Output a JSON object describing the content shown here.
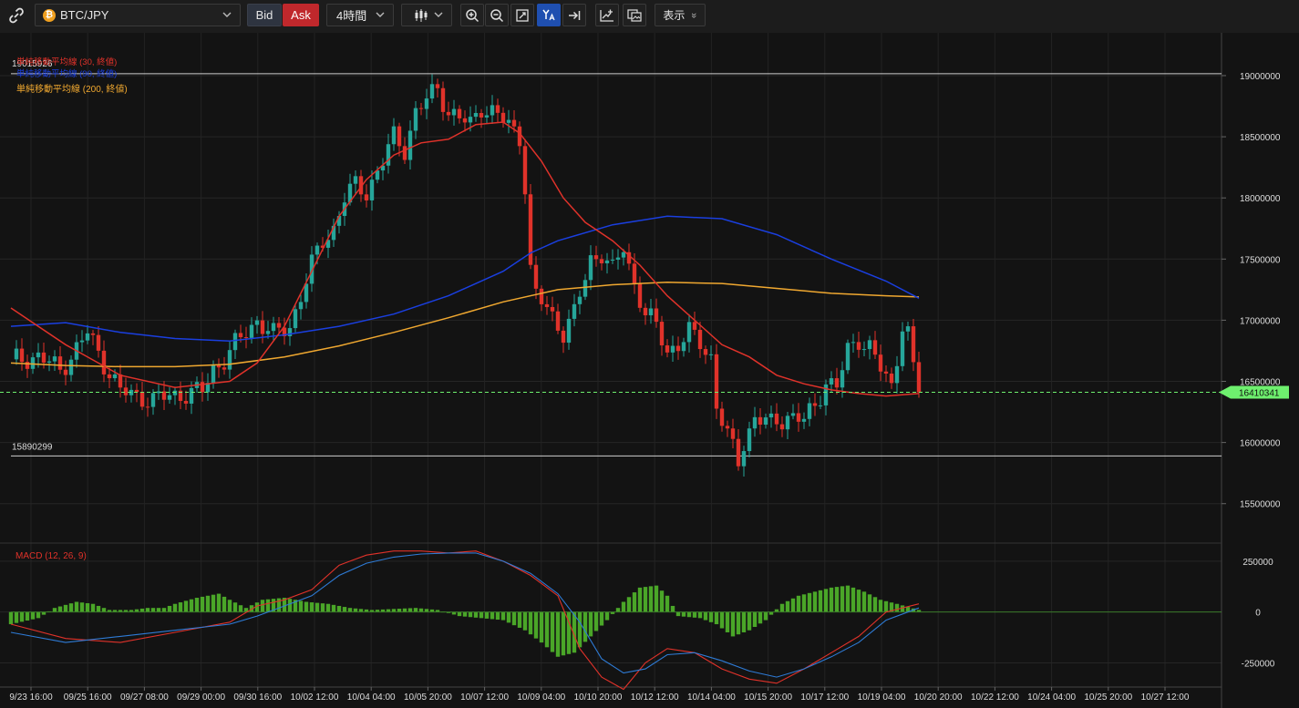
{
  "toolbar": {
    "symbol": "BTC/JPY",
    "coin_glyph": "₿",
    "bid_label": "Bid",
    "ask_label": "Ask",
    "timeframe": "4時間",
    "display_label": "表示",
    "display_chevron": "»"
  },
  "side_arrows": {
    "left": "»",
    "right": "«"
  },
  "indicators": {
    "sma30_label": "単純移動平均線 (30, 終値)",
    "sma90_label": "単純移動平均線 (90, 終値)",
    "sma200_label": "単純移動平均線 (200, 終値)",
    "macd_label": "MACD (12, 26, 9)"
  },
  "levels": {
    "upper_line": 19015926,
    "upper_label": "19015926",
    "lower_line": 15890299,
    "lower_label": "15890299",
    "current_price": 16410341,
    "current_label": "16410341"
  },
  "colors": {
    "up": "#26a69a",
    "down": "#e0322a",
    "sma30": "#e0322a",
    "sma90": "#1a3fe0",
    "sma200": "#f0a830",
    "macd_line": "#e0322a",
    "signal_line": "#2e7bd6",
    "histogram": "#4aa628",
    "current_price": "#6ef06e"
  },
  "chart_data": {
    "type": "candlestick",
    "ylim": [
      15200000,
      19350000
    ],
    "yticks": [
      19000000,
      18500000,
      18000000,
      17500000,
      17000000,
      16500000,
      16000000,
      15500000
    ],
    "ytick_labels": [
      "19000000",
      "18500000",
      "18000000",
      "17500000",
      "17000000",
      "16500000",
      "16000000",
      "15500000"
    ],
    "xticks": [
      "9/23 16:00",
      "09/25 16:00",
      "09/27 08:00",
      "09/29 00:00",
      "09/30 16:00",
      "10/02 12:00",
      "10/04 04:00",
      "10/05 20:00",
      "10/07 12:00",
      "10/09 04:00",
      "10/10 20:00",
      "10/12 12:00",
      "10/14 04:00",
      "10/15 20:00",
      "10/17 12:00",
      "10/19 04:00",
      "10/20 20:00",
      "10/22 12:00",
      "10/24 04:00",
      "10/25 20:00",
      "10/27 12:00"
    ],
    "close_path": [
      [
        0,
        16680000
      ],
      [
        5,
        16700000
      ],
      [
        9,
        16600000
      ],
      [
        11,
        16700000
      ],
      [
        14,
        16900000
      ],
      [
        17,
        16650000
      ],
      [
        20,
        16420000
      ],
      [
        23,
        16380000
      ],
      [
        26,
        16350000
      ],
      [
        29,
        16380000
      ],
      [
        32,
        16400000
      ],
      [
        35,
        16420000
      ],
      [
        37,
        16600000
      ],
      [
        39,
        16680000
      ],
      [
        41,
        16800000
      ],
      [
        43,
        16900000
      ],
      [
        45,
        17000000
      ],
      [
        48,
        16880000
      ],
      [
        51,
        16950000
      ],
      [
        53,
        17200000
      ],
      [
        55,
        17450000
      ],
      [
        57,
        17650000
      ],
      [
        59,
        17750000
      ],
      [
        61,
        18000000
      ],
      [
        63,
        18100000
      ],
      [
        65,
        18050000
      ],
      [
        68,
        18300000
      ],
      [
        70,
        18500000
      ],
      [
        72,
        18400000
      ],
      [
        74,
        18700000
      ],
      [
        76,
        18800000
      ],
      [
        78,
        18900000
      ],
      [
        80,
        18700000
      ],
      [
        82,
        18650000
      ],
      [
        84,
        18600000
      ],
      [
        86,
        18750000
      ],
      [
        88,
        18700000
      ],
      [
        91,
        18600000
      ],
      [
        93,
        18500000
      ],
      [
        94,
        18100000
      ],
      [
        95,
        17400000
      ],
      [
        96,
        17200000
      ],
      [
        98,
        17100000
      ],
      [
        101,
        16900000
      ],
      [
        103,
        17050000
      ],
      [
        106,
        17500000
      ],
      [
        108,
        17550000
      ],
      [
        110,
        17400000
      ],
      [
        112,
        17600000
      ],
      [
        114,
        17300000
      ],
      [
        116,
        17050000
      ],
      [
        118,
        16950000
      ],
      [
        120,
        16750000
      ],
      [
        122,
        16800000
      ],
      [
        124,
        16900000
      ],
      [
        126,
        16820000
      ],
      [
        128,
        16700000
      ],
      [
        129,
        16300000
      ],
      [
        131,
        16050000
      ],
      [
        133,
        15850000
      ],
      [
        134,
        16000000
      ],
      [
        136,
        16200000
      ],
      [
        139,
        16150000
      ],
      [
        142,
        16220000
      ],
      [
        145,
        16180000
      ],
      [
        147,
        16300000
      ],
      [
        149,
        16500000
      ],
      [
        151,
        16450000
      ],
      [
        153,
        16750000
      ],
      [
        155,
        16850000
      ],
      [
        157,
        16780000
      ],
      [
        159,
        16600000
      ],
      [
        161,
        16450000
      ],
      [
        162,
        16700000
      ],
      [
        163,
        16980000
      ],
      [
        164,
        16900000
      ],
      [
        165,
        16600000
      ],
      [
        166,
        16410341
      ]
    ],
    "sma30": [
      [
        0,
        17100000
      ],
      [
        10,
        16800000
      ],
      [
        20,
        16550000
      ],
      [
        30,
        16450000
      ],
      [
        40,
        16500000
      ],
      [
        45,
        16650000
      ],
      [
        50,
        16950000
      ],
      [
        55,
        17400000
      ],
      [
        60,
        17850000
      ],
      [
        65,
        18150000
      ],
      [
        70,
        18350000
      ],
      [
        75,
        18450000
      ],
      [
        80,
        18480000
      ],
      [
        85,
        18600000
      ],
      [
        90,
        18620000
      ],
      [
        93,
        18530000
      ],
      [
        97,
        18300000
      ],
      [
        101,
        18000000
      ],
      [
        105,
        17800000
      ],
      [
        110,
        17650000
      ],
      [
        115,
        17450000
      ],
      [
        120,
        17200000
      ],
      [
        125,
        17000000
      ],
      [
        130,
        16800000
      ],
      [
        135,
        16700000
      ],
      [
        140,
        16550000
      ],
      [
        145,
        16480000
      ],
      [
        150,
        16430000
      ],
      [
        155,
        16400000
      ],
      [
        160,
        16380000
      ],
      [
        166,
        16400000
      ]
    ],
    "sma90": [
      [
        0,
        16950000
      ],
      [
        10,
        16980000
      ],
      [
        20,
        16900000
      ],
      [
        30,
        16850000
      ],
      [
        40,
        16830000
      ],
      [
        50,
        16880000
      ],
      [
        60,
        16950000
      ],
      [
        70,
        17050000
      ],
      [
        80,
        17200000
      ],
      [
        90,
        17400000
      ],
      [
        95,
        17550000
      ],
      [
        100,
        17650000
      ],
      [
        110,
        17780000
      ],
      [
        120,
        17850000
      ],
      [
        130,
        17830000
      ],
      [
        140,
        17700000
      ],
      [
        150,
        17500000
      ],
      [
        160,
        17320000
      ],
      [
        166,
        17180000
      ]
    ],
    "sma200": [
      [
        0,
        16650000
      ],
      [
        10,
        16630000
      ],
      [
        20,
        16620000
      ],
      [
        30,
        16620000
      ],
      [
        40,
        16640000
      ],
      [
        50,
        16700000
      ],
      [
        60,
        16790000
      ],
      [
        70,
        16900000
      ],
      [
        80,
        17020000
      ],
      [
        90,
        17150000
      ],
      [
        100,
        17250000
      ],
      [
        110,
        17290000
      ],
      [
        120,
        17310000
      ],
      [
        130,
        17300000
      ],
      [
        140,
        17260000
      ],
      [
        150,
        17220000
      ],
      [
        160,
        17200000
      ],
      [
        166,
        17190000
      ]
    ],
    "macd": {
      "ylim": [
        -360000,
        330000
      ],
      "yticks": [
        250000,
        0,
        -250000
      ],
      "ytick_labels": [
        "250000",
        "0",
        "-250000"
      ],
      "macd": [
        [
          0,
          -60000
        ],
        [
          10,
          -130000
        ],
        [
          20,
          -150000
        ],
        [
          30,
          -100000
        ],
        [
          40,
          -50000
        ],
        [
          45,
          30000
        ],
        [
          50,
          60000
        ],
        [
          55,
          110000
        ],
        [
          60,
          230000
        ],
        [
          65,
          280000
        ],
        [
          70,
          300000
        ],
        [
          75,
          300000
        ],
        [
          80,
          290000
        ],
        [
          85,
          300000
        ],
        [
          90,
          250000
        ],
        [
          95,
          180000
        ],
        [
          100,
          80000
        ],
        [
          104,
          -180000
        ],
        [
          108,
          -320000
        ],
        [
          112,
          -380000
        ],
        [
          116,
          -250000
        ],
        [
          120,
          -180000
        ],
        [
          125,
          -200000
        ],
        [
          130,
          -280000
        ],
        [
          135,
          -330000
        ],
        [
          140,
          -350000
        ],
        [
          145,
          -280000
        ],
        [
          150,
          -200000
        ],
        [
          155,
          -120000
        ],
        [
          160,
          0
        ],
        [
          166,
          40000
        ]
      ],
      "signal": [
        [
          0,
          -100000
        ],
        [
          10,
          -150000
        ],
        [
          20,
          -120000
        ],
        [
          30,
          -90000
        ],
        [
          40,
          -60000
        ],
        [
          45,
          -20000
        ],
        [
          50,
          30000
        ],
        [
          55,
          80000
        ],
        [
          60,
          180000
        ],
        [
          65,
          240000
        ],
        [
          70,
          270000
        ],
        [
          75,
          285000
        ],
        [
          80,
          290000
        ],
        [
          85,
          290000
        ],
        [
          90,
          250000
        ],
        [
          95,
          190000
        ],
        [
          100,
          90000
        ],
        [
          104,
          -50000
        ],
        [
          108,
          -230000
        ],
        [
          112,
          -300000
        ],
        [
          116,
          -280000
        ],
        [
          120,
          -210000
        ],
        [
          125,
          -200000
        ],
        [
          130,
          -240000
        ],
        [
          135,
          -290000
        ],
        [
          140,
          -320000
        ],
        [
          145,
          -280000
        ],
        [
          150,
          -220000
        ],
        [
          155,
          -150000
        ],
        [
          160,
          -40000
        ],
        [
          166,
          20000
        ]
      ],
      "hist": [
        [
          0,
          -60000
        ],
        [
          5,
          -30000
        ],
        [
          8,
          20000
        ],
        [
          12,
          50000
        ],
        [
          15,
          40000
        ],
        [
          18,
          10000
        ],
        [
          22,
          10000
        ],
        [
          25,
          20000
        ],
        [
          28,
          20000
        ],
        [
          30,
          40000
        ],
        [
          34,
          70000
        ],
        [
          38,
          90000
        ],
        [
          40,
          60000
        ],
        [
          43,
          20000
        ],
        [
          46,
          60000
        ],
        [
          50,
          70000
        ],
        [
          54,
          50000
        ],
        [
          58,
          40000
        ],
        [
          62,
          20000
        ],
        [
          66,
          10000
        ],
        [
          70,
          15000
        ],
        [
          74,
          20000
        ],
        [
          78,
          10000
        ],
        [
          82,
          -20000
        ],
        [
          86,
          -30000
        ],
        [
          90,
          -40000
        ],
        [
          94,
          -90000
        ],
        [
          97,
          -150000
        ],
        [
          100,
          -220000
        ],
        [
          103,
          -200000
        ],
        [
          106,
          -120000
        ],
        [
          109,
          -40000
        ],
        [
          112,
          50000
        ],
        [
          115,
          120000
        ],
        [
          118,
          130000
        ],
        [
          120,
          80000
        ],
        [
          122,
          -20000
        ],
        [
          126,
          -30000
        ],
        [
          129,
          -60000
        ],
        [
          132,
          -120000
        ],
        [
          135,
          -90000
        ],
        [
          138,
          -40000
        ],
        [
          141,
          40000
        ],
        [
          144,
          80000
        ],
        [
          147,
          100000
        ],
        [
          150,
          120000
        ],
        [
          153,
          130000
        ],
        [
          156,
          100000
        ],
        [
          159,
          60000
        ],
        [
          162,
          40000
        ],
        [
          166,
          10000
        ]
      ]
    }
  }
}
